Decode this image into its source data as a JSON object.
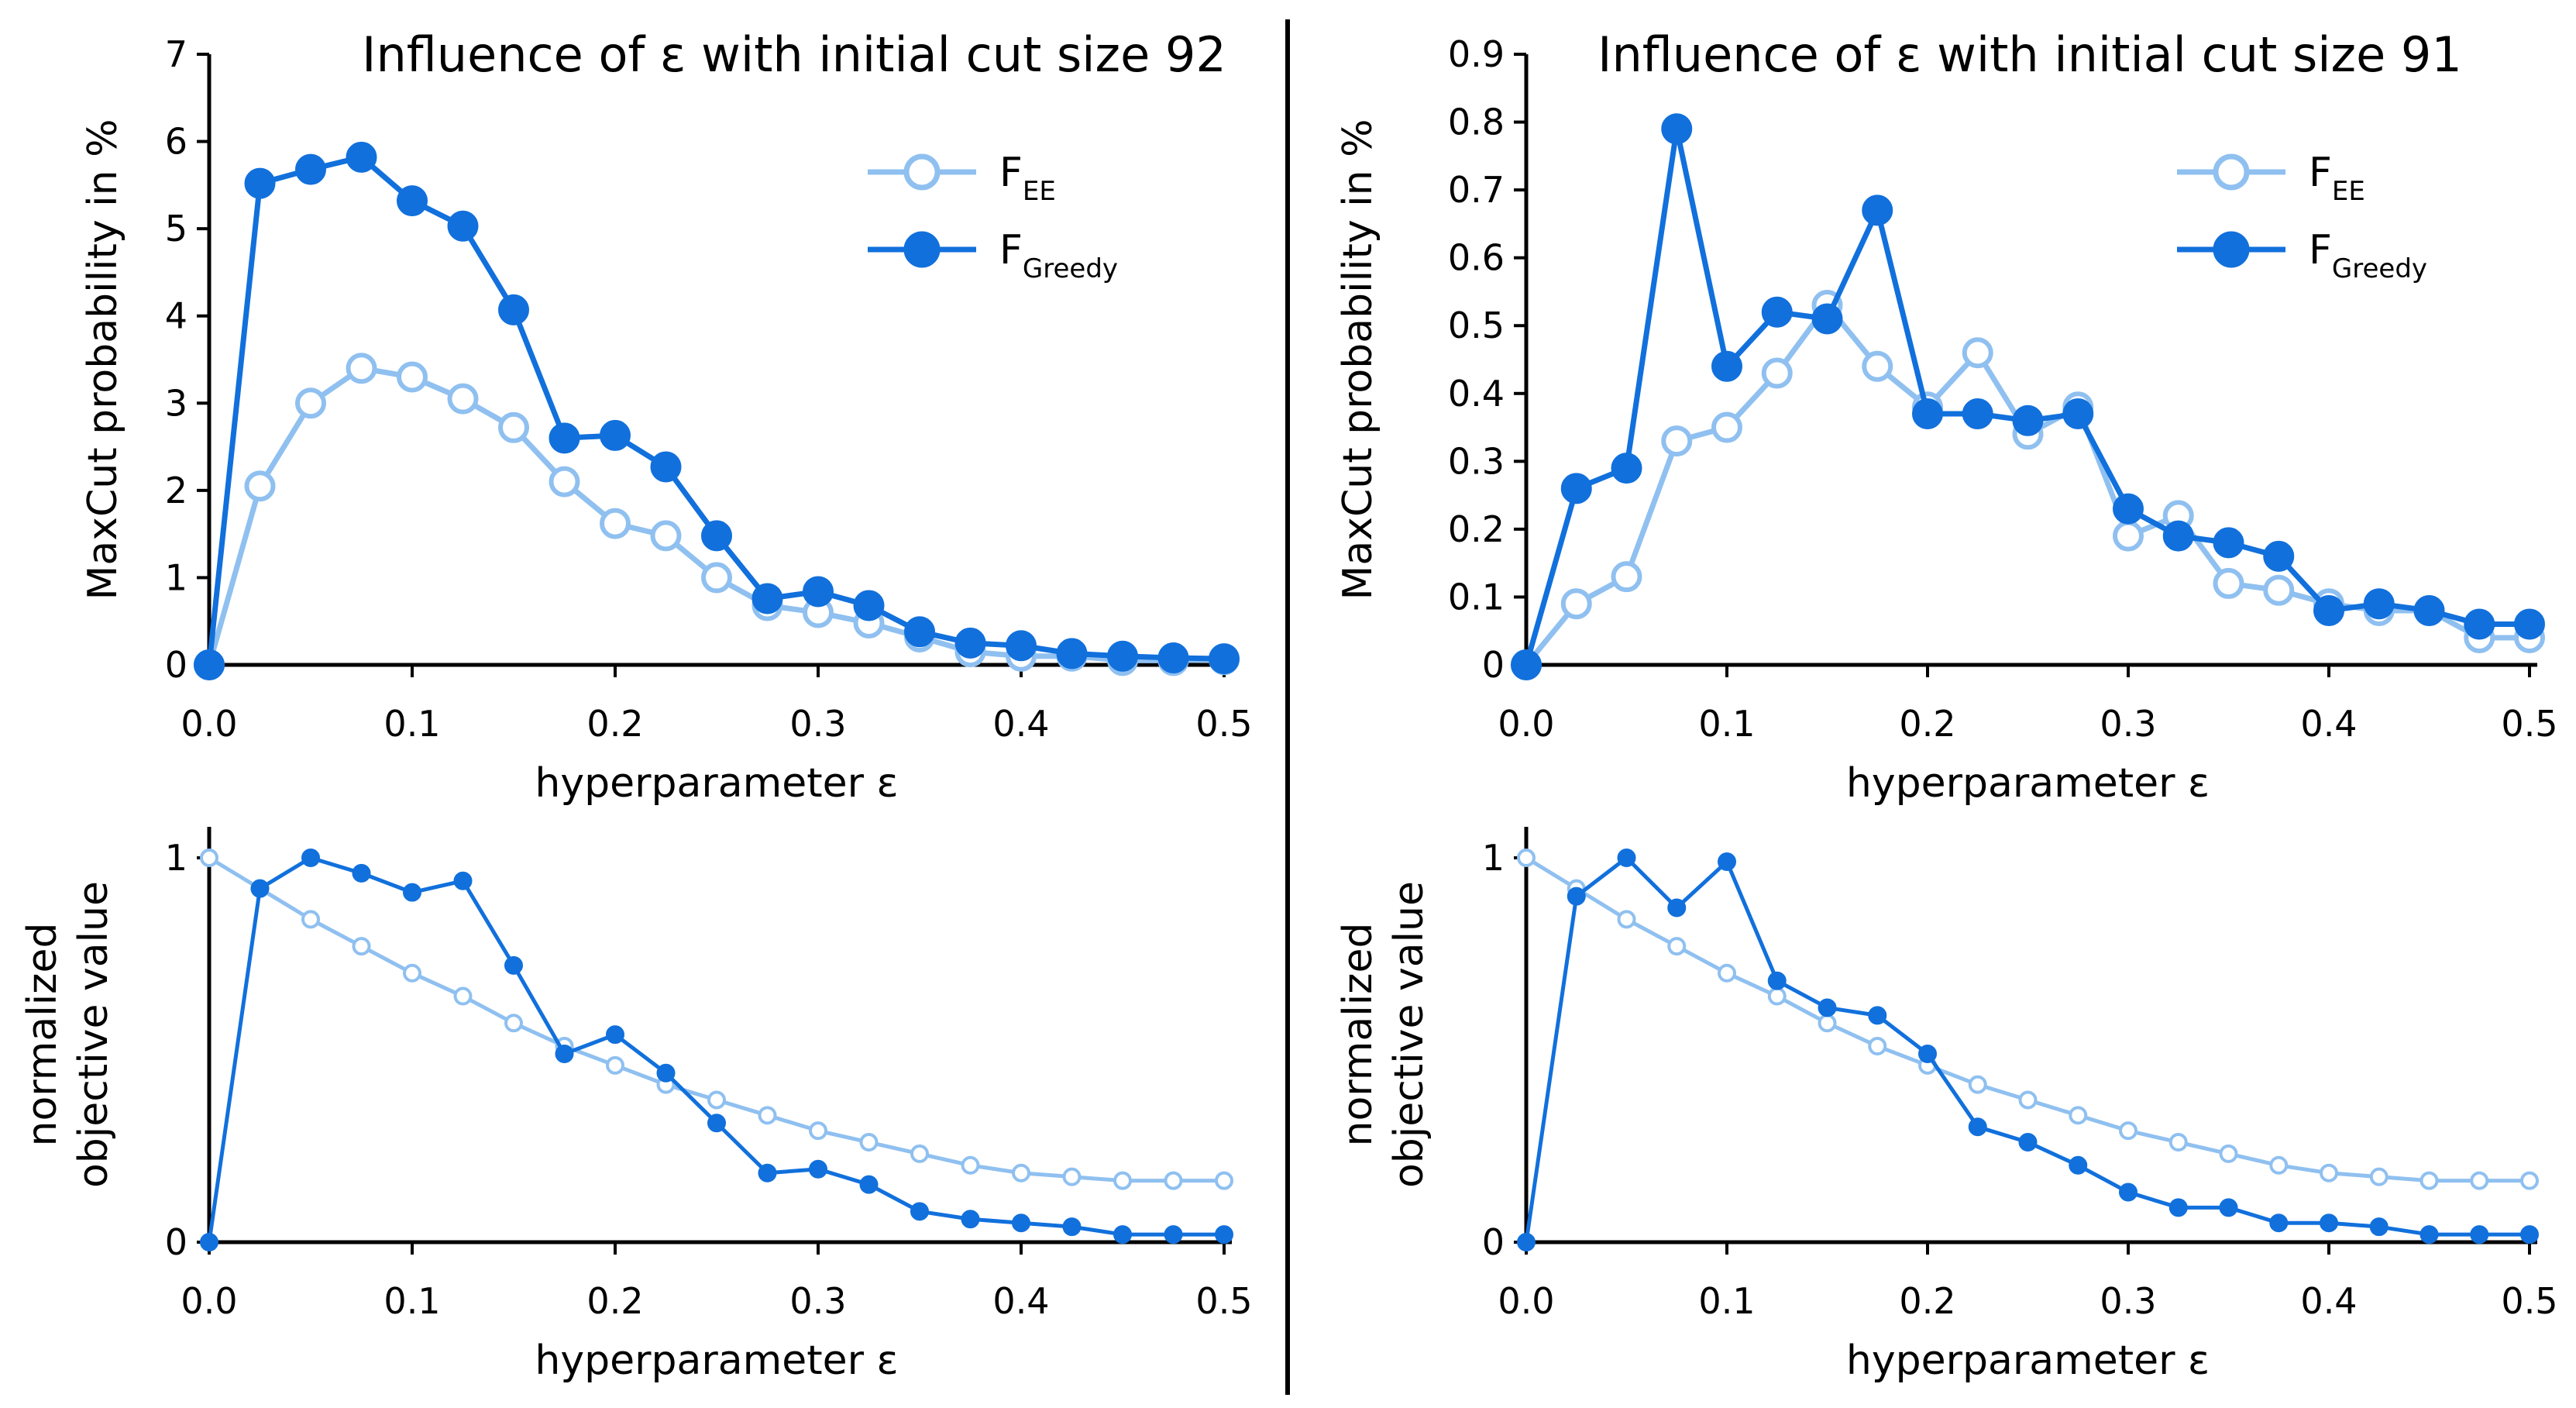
{
  "colors": {
    "ee": "#8fc0f0",
    "greedy": "#1170dc",
    "axis": "#000000",
    "background": "#ffffff"
  },
  "chart_data": [
    {
      "id": "top-left",
      "type": "line",
      "title": "Influence of ε with initial cut size 92",
      "xlabel": "hyperparameter ε",
      "ylabel": "MaxCut probability in %",
      "xlim": [
        0,
        0.5
      ],
      "ylim": [
        0,
        7
      ],
      "xticks": [
        0,
        0.1,
        0.2,
        0.3,
        0.4,
        0.5
      ],
      "xtick_labels": [
        "0.0",
        "0.1",
        "0.2",
        "0.3",
        "0.4",
        "0.5"
      ],
      "yticks": [
        0,
        1,
        2,
        3,
        4,
        5,
        6,
        7
      ],
      "ytick_labels": [
        "0",
        "1",
        "2",
        "3",
        "4",
        "5",
        "6",
        "7"
      ],
      "legend": true,
      "legend_position": "top-right",
      "marker_size": "large",
      "x": [
        0,
        0.025,
        0.05,
        0.075,
        0.1,
        0.125,
        0.15,
        0.175,
        0.2,
        0.225,
        0.25,
        0.275,
        0.3,
        0.325,
        0.35,
        0.375,
        0.4,
        0.425,
        0.45,
        0.475,
        0.5
      ],
      "series": [
        {
          "name": "F",
          "sub": "EE",
          "key": "ee",
          "values": [
            0,
            2.05,
            3.0,
            3.4,
            3.3,
            3.05,
            2.72,
            2.1,
            1.62,
            1.48,
            1.0,
            0.68,
            0.6,
            0.48,
            0.32,
            0.15,
            0.1,
            0.1,
            0.05,
            0.05,
            0.06
          ]
        },
        {
          "name": "F",
          "sub": "Greedy",
          "key": "greedy",
          "values": [
            0,
            5.52,
            5.68,
            5.82,
            5.32,
            5.03,
            4.07,
            2.6,
            2.63,
            2.27,
            1.48,
            0.76,
            0.84,
            0.68,
            0.38,
            0.25,
            0.22,
            0.13,
            0.1,
            0.08,
            0.07
          ]
        }
      ]
    },
    {
      "id": "top-right",
      "type": "line",
      "title": "Influence of ε with initial cut size 91",
      "xlabel": "hyperparameter ε",
      "ylabel": "MaxCut probability in %",
      "xlim": [
        0,
        0.5
      ],
      "ylim": [
        0,
        0.9
      ],
      "xticks": [
        0,
        0.1,
        0.2,
        0.3,
        0.4,
        0.5
      ],
      "xtick_labels": [
        "0.0",
        "0.1",
        "0.2",
        "0.3",
        "0.4",
        "0.5"
      ],
      "yticks": [
        0,
        0.1,
        0.2,
        0.3,
        0.4,
        0.5,
        0.6,
        0.7,
        0.8,
        0.9
      ],
      "ytick_labels": [
        "0",
        "0.1",
        "0.2",
        "0.3",
        "0.4",
        "0.5",
        "0.6",
        "0.7",
        "0.8",
        "0.9"
      ],
      "legend": true,
      "legend_position": "top-right",
      "marker_size": "large",
      "x": [
        0,
        0.025,
        0.05,
        0.075,
        0.1,
        0.125,
        0.15,
        0.175,
        0.2,
        0.225,
        0.25,
        0.275,
        0.3,
        0.325,
        0.35,
        0.375,
        0.4,
        0.425,
        0.45,
        0.475,
        0.5
      ],
      "series": [
        {
          "name": "F",
          "sub": "EE",
          "key": "ee",
          "values": [
            0,
            0.09,
            0.13,
            0.33,
            0.35,
            0.43,
            0.53,
            0.44,
            0.38,
            0.46,
            0.34,
            0.38,
            0.19,
            0.22,
            0.12,
            0.11,
            0.09,
            0.08,
            0.08,
            0.04,
            0.04
          ]
        },
        {
          "name": "F",
          "sub": "Greedy",
          "key": "greedy",
          "values": [
            0,
            0.26,
            0.29,
            0.79,
            0.44,
            0.52,
            0.51,
            0.67,
            0.37,
            0.37,
            0.36,
            0.37,
            0.23,
            0.19,
            0.18,
            0.16,
            0.08,
            0.09,
            0.08,
            0.06,
            0.06
          ]
        }
      ]
    },
    {
      "id": "bottom-left",
      "type": "line",
      "title": "",
      "xlabel": "hyperparameter ε",
      "ylabel": "normalized objective value",
      "ylabel_lines": [
        "normalized",
        "objective value"
      ],
      "xlim": [
        0,
        0.5
      ],
      "ylim": [
        0,
        1
      ],
      "xticks": [
        0,
        0.1,
        0.2,
        0.3,
        0.4,
        0.5
      ],
      "xtick_labels": [
        "0.0",
        "0.1",
        "0.2",
        "0.3",
        "0.4",
        "0.5"
      ],
      "yticks": [
        0,
        1
      ],
      "ytick_labels": [
        "0",
        "1"
      ],
      "legend": false,
      "marker_size": "small",
      "x": [
        0,
        0.025,
        0.05,
        0.075,
        0.1,
        0.125,
        0.15,
        0.175,
        0.2,
        0.225,
        0.25,
        0.275,
        0.3,
        0.325,
        0.35,
        0.375,
        0.4,
        0.425,
        0.45,
        0.475,
        0.5
      ],
      "series": [
        {
          "name": "F",
          "sub": "EE",
          "key": "ee",
          "values": [
            1.0,
            0.92,
            0.84,
            0.77,
            0.7,
            0.64,
            0.57,
            0.51,
            0.46,
            0.41,
            0.37,
            0.33,
            0.29,
            0.26,
            0.23,
            0.2,
            0.18,
            0.17,
            0.16,
            0.16,
            0.16
          ]
        },
        {
          "name": "F",
          "sub": "Greedy",
          "key": "greedy",
          "values": [
            0,
            0.92,
            1.0,
            0.96,
            0.91,
            0.94,
            0.72,
            0.49,
            0.54,
            0.44,
            0.31,
            0.18,
            0.19,
            0.15,
            0.08,
            0.06,
            0.05,
            0.04,
            0.02,
            0.02,
            0.02
          ]
        }
      ]
    },
    {
      "id": "bottom-right",
      "type": "line",
      "title": "",
      "xlabel": "hyperparameter ε",
      "ylabel": "normalized objective value",
      "ylabel_lines": [
        "normalized",
        "objective value"
      ],
      "xlim": [
        0,
        0.5
      ],
      "ylim": [
        0,
        1
      ],
      "xticks": [
        0,
        0.1,
        0.2,
        0.3,
        0.4,
        0.5
      ],
      "xtick_labels": [
        "0.0",
        "0.1",
        "0.2",
        "0.3",
        "0.4",
        "0.5"
      ],
      "yticks": [
        0,
        1
      ],
      "ytick_labels": [
        "0",
        "1"
      ],
      "legend": false,
      "marker_size": "small",
      "x": [
        0,
        0.025,
        0.05,
        0.075,
        0.1,
        0.125,
        0.15,
        0.175,
        0.2,
        0.225,
        0.25,
        0.275,
        0.3,
        0.325,
        0.35,
        0.375,
        0.4,
        0.425,
        0.45,
        0.475,
        0.5
      ],
      "series": [
        {
          "name": "F",
          "sub": "EE",
          "key": "ee",
          "values": [
            1.0,
            0.92,
            0.84,
            0.77,
            0.7,
            0.64,
            0.57,
            0.51,
            0.46,
            0.41,
            0.37,
            0.33,
            0.29,
            0.26,
            0.23,
            0.2,
            0.18,
            0.17,
            0.16,
            0.16,
            0.16
          ]
        },
        {
          "name": "F",
          "sub": "Greedy",
          "key": "greedy",
          "values": [
            0,
            0.9,
            1.0,
            0.87,
            0.99,
            0.68,
            0.61,
            0.59,
            0.49,
            0.3,
            0.26,
            0.2,
            0.13,
            0.09,
            0.09,
            0.05,
            0.05,
            0.04,
            0.02,
            0.02,
            0.02
          ]
        }
      ]
    }
  ]
}
